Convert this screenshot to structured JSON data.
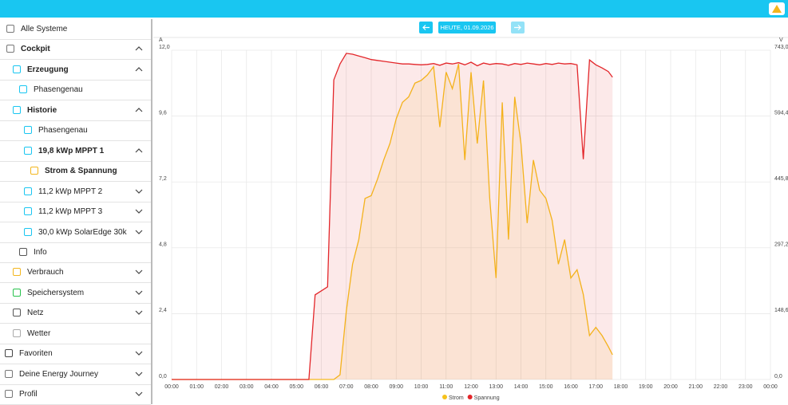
{
  "sidebar": {
    "items": [
      "Alle Systeme",
      "Cockpit",
      "Erzeugung",
      "Phasengenau",
      "Historie",
      "Phasengenau",
      "19,8 kWp MPPT 1",
      "Strom & Spannung",
      "11,2 kWp MPPT 2",
      "11,2 kWp MPPT 3",
      "30,0 kWp SolarEdge 30k",
      "Info",
      "Verbrauch",
      "Speichersystem",
      "Netz",
      "Wetter",
      "Favoriten",
      "Deine Energy Journey",
      "Profil"
    ]
  },
  "date_label": "HEUTE, 01.09.2026",
  "chart_data": {
    "type": "line",
    "y_unit": "A",
    "y2_unit": "V",
    "x": [
      0,
      5.5,
      5.75,
      6,
      6.25,
      6.5,
      6.75,
      7,
      7.25,
      7.5,
      7.75,
      8,
      8.25,
      8.5,
      8.75,
      9,
      9.25,
      9.5,
      9.75,
      10,
      10.25,
      10.5,
      10.75,
      11,
      11.25,
      11.5,
      11.75,
      12,
      12.25,
      12.5,
      12.75,
      13,
      13.25,
      13.5,
      13.75,
      14,
      14.25,
      14.5,
      14.75,
      15,
      15.25,
      15.5,
      15.75,
      16,
      16.25,
      16.5,
      16.75,
      17,
      17.25,
      17.5,
      17.67
    ],
    "series": [
      {
        "name": "Strom",
        "color": "#f6c21b",
        "values": [
          0,
          0,
          0,
          0,
          0,
          0,
          0.17,
          2.5,
          4.2,
          5.1,
          6.6,
          6.7,
          7.3,
          8.0,
          8.6,
          9.5,
          10.1,
          10.3,
          10.8,
          10.9,
          11.1,
          11.4,
          9.2,
          11.2,
          10.6,
          11.5,
          8.0,
          11.2,
          8.6,
          10.9,
          6.6,
          3.7,
          10.1,
          5.1,
          10.3,
          8.6,
          5.7,
          8.0,
          6.9,
          6.6,
          5.8,
          4.2,
          5.1,
          3.7,
          4.0,
          3.1,
          1.6,
          1.9,
          1.6,
          1.2,
          0.9
        ]
      },
      {
        "name": "Spannung",
        "color": "#e3262a",
        "axis": "y2",
        "values": [
          0,
          0,
          191,
          200,
          209,
          676,
          712,
          736,
          734,
          730,
          726,
          722,
          720,
          718,
          716,
          714,
          712,
          712,
          711,
          710,
          711,
          713,
          709,
          714,
          712,
          715,
          710,
          716,
          708,
          714,
          711,
          713,
          712,
          709,
          713,
          711,
          714,
          712,
          710,
          713,
          711,
          714,
          712,
          713,
          710,
          497,
          721,
          710,
          703,
          695,
          682
        ]
      }
    ],
    "xlim": [
      0,
      24
    ],
    "xticks": [
      {
        "value": 0,
        "label": "00:00"
      },
      {
        "value": 1,
        "label": "01:00"
      },
      {
        "value": 2,
        "label": "02:00"
      },
      {
        "value": 3,
        "label": "03:00"
      },
      {
        "value": 4,
        "label": "04:00"
      },
      {
        "value": 5,
        "label": "05:00"
      },
      {
        "value": 6,
        "label": "06:00"
      },
      {
        "value": 7,
        "label": "07:00"
      },
      {
        "value": 8,
        "label": "08:00"
      },
      {
        "value": 9,
        "label": "09:00"
      },
      {
        "value": 10,
        "label": "10:00"
      },
      {
        "value": 11,
        "label": "11:00"
      },
      {
        "value": 12,
        "label": "12:00"
      },
      {
        "value": 13,
        "label": "13:00"
      },
      {
        "value": 14,
        "label": "14:00"
      },
      {
        "value": 15,
        "label": "15:00"
      },
      {
        "value": 16,
        "label": "16:00"
      },
      {
        "value": 17,
        "label": "17:00"
      },
      {
        "value": 18,
        "label": "18:00"
      },
      {
        "value": 19,
        "label": "19:00"
      },
      {
        "value": 20,
        "label": "20:00"
      },
      {
        "value": 21,
        "label": "21:00"
      },
      {
        "value": 22,
        "label": "22:00"
      },
      {
        "value": 23,
        "label": "23:00"
      },
      {
        "value": 24,
        "label": "00:00"
      }
    ],
    "ylim": [
      0,
      12
    ],
    "yticks": [
      {
        "value": 0,
        "label": "0,0"
      },
      {
        "value": 2.4,
        "label": "2,4"
      },
      {
        "value": 4.8,
        "label": "4,8"
      },
      {
        "value": 7.2,
        "label": "7,2"
      },
      {
        "value": 9.6,
        "label": "9,6"
      },
      {
        "value": 12,
        "label": "12,0"
      }
    ],
    "y2lim": [
      0,
      743
    ],
    "y2ticks": [
      {
        "value": 0,
        "label": "0,0"
      },
      {
        "value": 148.6,
        "label": "148,6"
      },
      {
        "value": 297.2,
        "label": "297,2"
      },
      {
        "value": 445.8,
        "label": "445,8"
      },
      {
        "value": 594.4,
        "label": "594,4"
      },
      {
        "value": 743,
        "label": "743,0"
      }
    ],
    "grid": true
  }
}
